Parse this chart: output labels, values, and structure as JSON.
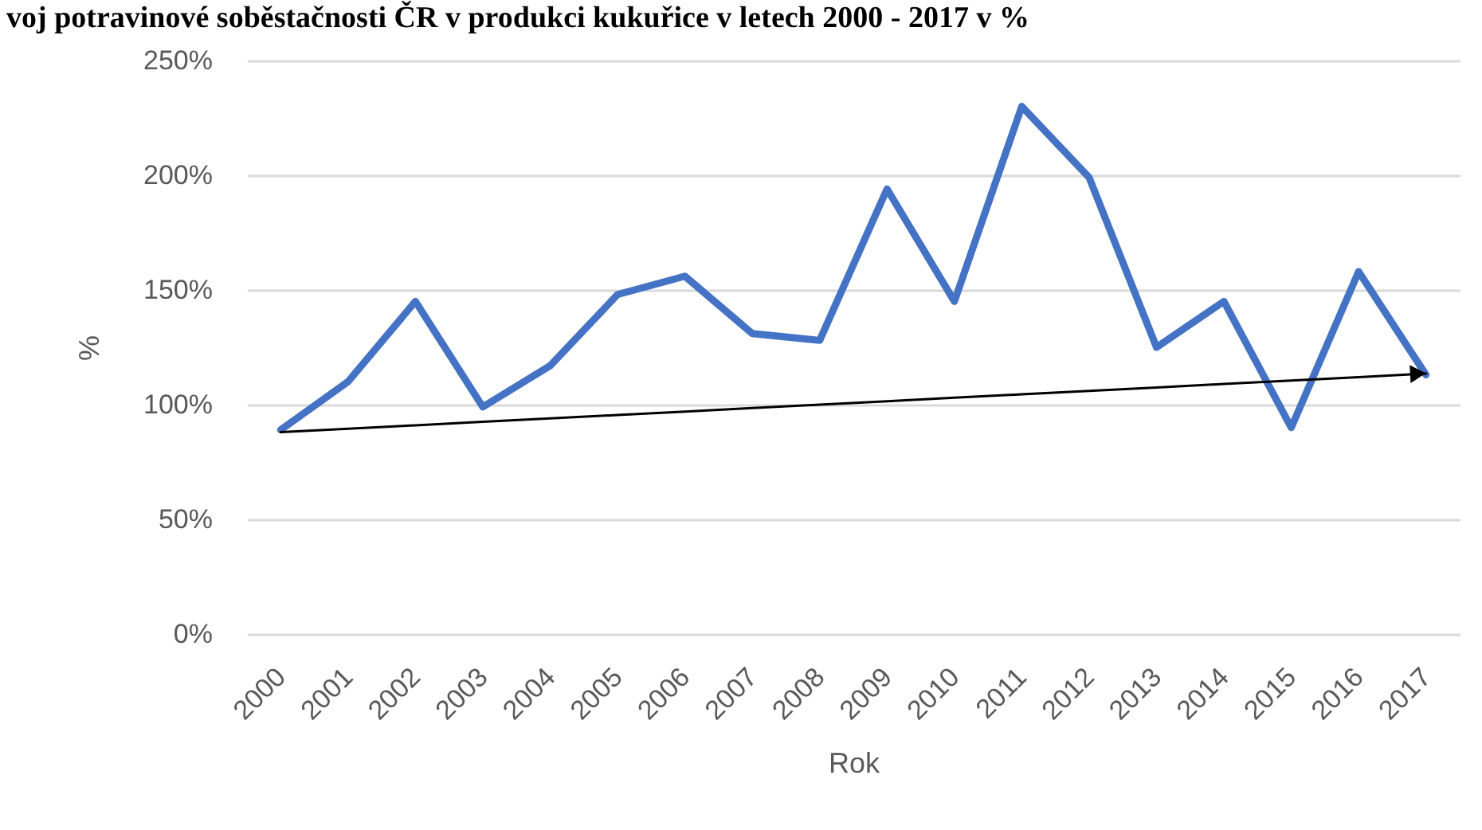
{
  "chart_data": {
    "type": "line",
    "title": "voj potravinové soběstačnosti ČR v produkci kukuřice v letech 2000 - 2017 v %",
    "xlabel": "Rok",
    "ylabel": "%",
    "categories": [
      "2000",
      "2001",
      "2002",
      "2003",
      "2004",
      "2005",
      "2006",
      "2007",
      "2008",
      "2009",
      "2010",
      "2011",
      "2012",
      "2013",
      "2014",
      "2015",
      "2016",
      "2017"
    ],
    "series": [
      {
        "color": "#4472c4",
        "values": [
          89,
          110,
          145,
          99,
          117,
          148,
          156,
          131,
          128,
          194,
          145,
          230,
          199,
          125,
          145,
          90,
          158,
          113
        ]
      },
      {
        "type": "line",
        "color": "#000000",
        "values": [
          88,
          89.5,
          91,
          92.5,
          94,
          95.5,
          97,
          98.5,
          100,
          101.5,
          103,
          104.5,
          106,
          107.5,
          109,
          110.5,
          112,
          113.5
        ]
      }
    ],
    "ylim": [
      0,
      250
    ],
    "yticks": [
      {
        "value": 0,
        "label": "0%"
      },
      {
        "value": 50,
        "label": "50%"
      },
      {
        "value": 100,
        "label": "100%"
      },
      {
        "value": 150,
        "label": "150%"
      },
      {
        "value": 200,
        "label": "200%"
      },
      {
        "value": 250,
        "label": "250%"
      }
    ],
    "grid": "y",
    "line_style": "solid"
  }
}
